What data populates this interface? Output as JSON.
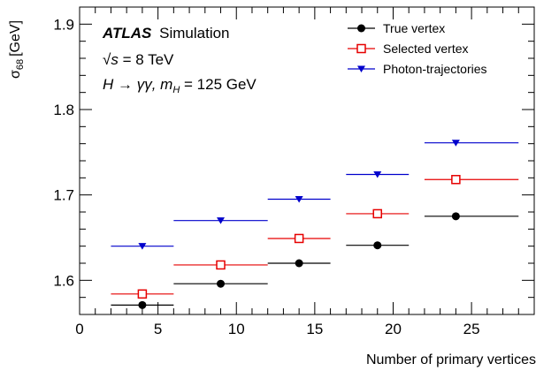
{
  "chart_data": {
    "type": "scatter",
    "xlabel": "Number of primary vertices",
    "ylabel_main": "σ",
    "ylabel_sub": "68",
    "ylabel_unit": "[GeV]",
    "xlim": [
      0,
      29
    ],
    "ylim": [
      1.56,
      1.92
    ],
    "x_ticks": [
      0,
      5,
      10,
      15,
      20,
      25
    ],
    "y_ticks": [
      1.6,
      1.7,
      1.8,
      1.9
    ],
    "x_tick_labels": [
      "0",
      "5",
      "10",
      "15",
      "20",
      "25"
    ],
    "y_tick_labels": [
      "1.6",
      "1.7",
      "1.8",
      "1.9"
    ],
    "annotations": {
      "atlas": "ATLAS",
      "simulation": "Simulation",
      "sqrt_s": "√s",
      "energy": " = 8 TeV",
      "process": "H → γγ, m",
      "process_sub": "H",
      "mass": " = 125 GeV"
    },
    "legend_position": "top-right",
    "series": [
      {
        "name": "True vertex",
        "marker": "circle-filled",
        "color": "#000000",
        "points": [
          {
            "x": 4,
            "xlow": 2,
            "xhigh": 6,
            "y": 1.571
          },
          {
            "x": 9,
            "xlow": 6,
            "xhigh": 12,
            "y": 1.596
          },
          {
            "x": 14,
            "xlow": 12,
            "xhigh": 16,
            "y": 1.62
          },
          {
            "x": 19,
            "xlow": 17,
            "xhigh": 21,
            "y": 1.641
          },
          {
            "x": 24,
            "xlow": 22,
            "xhigh": 28,
            "y": 1.675
          }
        ]
      },
      {
        "name": "Selected vertex",
        "marker": "square-open",
        "color": "#e60000",
        "points": [
          {
            "x": 4,
            "xlow": 2,
            "xhigh": 6,
            "y": 1.584
          },
          {
            "x": 9,
            "xlow": 6,
            "xhigh": 12,
            "y": 1.618
          },
          {
            "x": 14,
            "xlow": 12,
            "xhigh": 16,
            "y": 1.649
          },
          {
            "x": 19,
            "xlow": 17,
            "xhigh": 21,
            "y": 1.678
          },
          {
            "x": 24,
            "xlow": 22,
            "xhigh": 28,
            "y": 1.718
          }
        ]
      },
      {
        "name": "Photon-trajectories",
        "marker": "triangle-down-filled",
        "color": "#0000cc",
        "points": [
          {
            "x": 4,
            "xlow": 2,
            "xhigh": 6,
            "y": 1.64
          },
          {
            "x": 9,
            "xlow": 6,
            "xhigh": 12,
            "y": 1.67
          },
          {
            "x": 14,
            "xlow": 12,
            "xhigh": 16,
            "y": 1.695
          },
          {
            "x": 19,
            "xlow": 17,
            "xhigh": 21,
            "y": 1.724
          },
          {
            "x": 24,
            "xlow": 22,
            "xhigh": 28,
            "y": 1.761
          }
        ]
      }
    ]
  }
}
